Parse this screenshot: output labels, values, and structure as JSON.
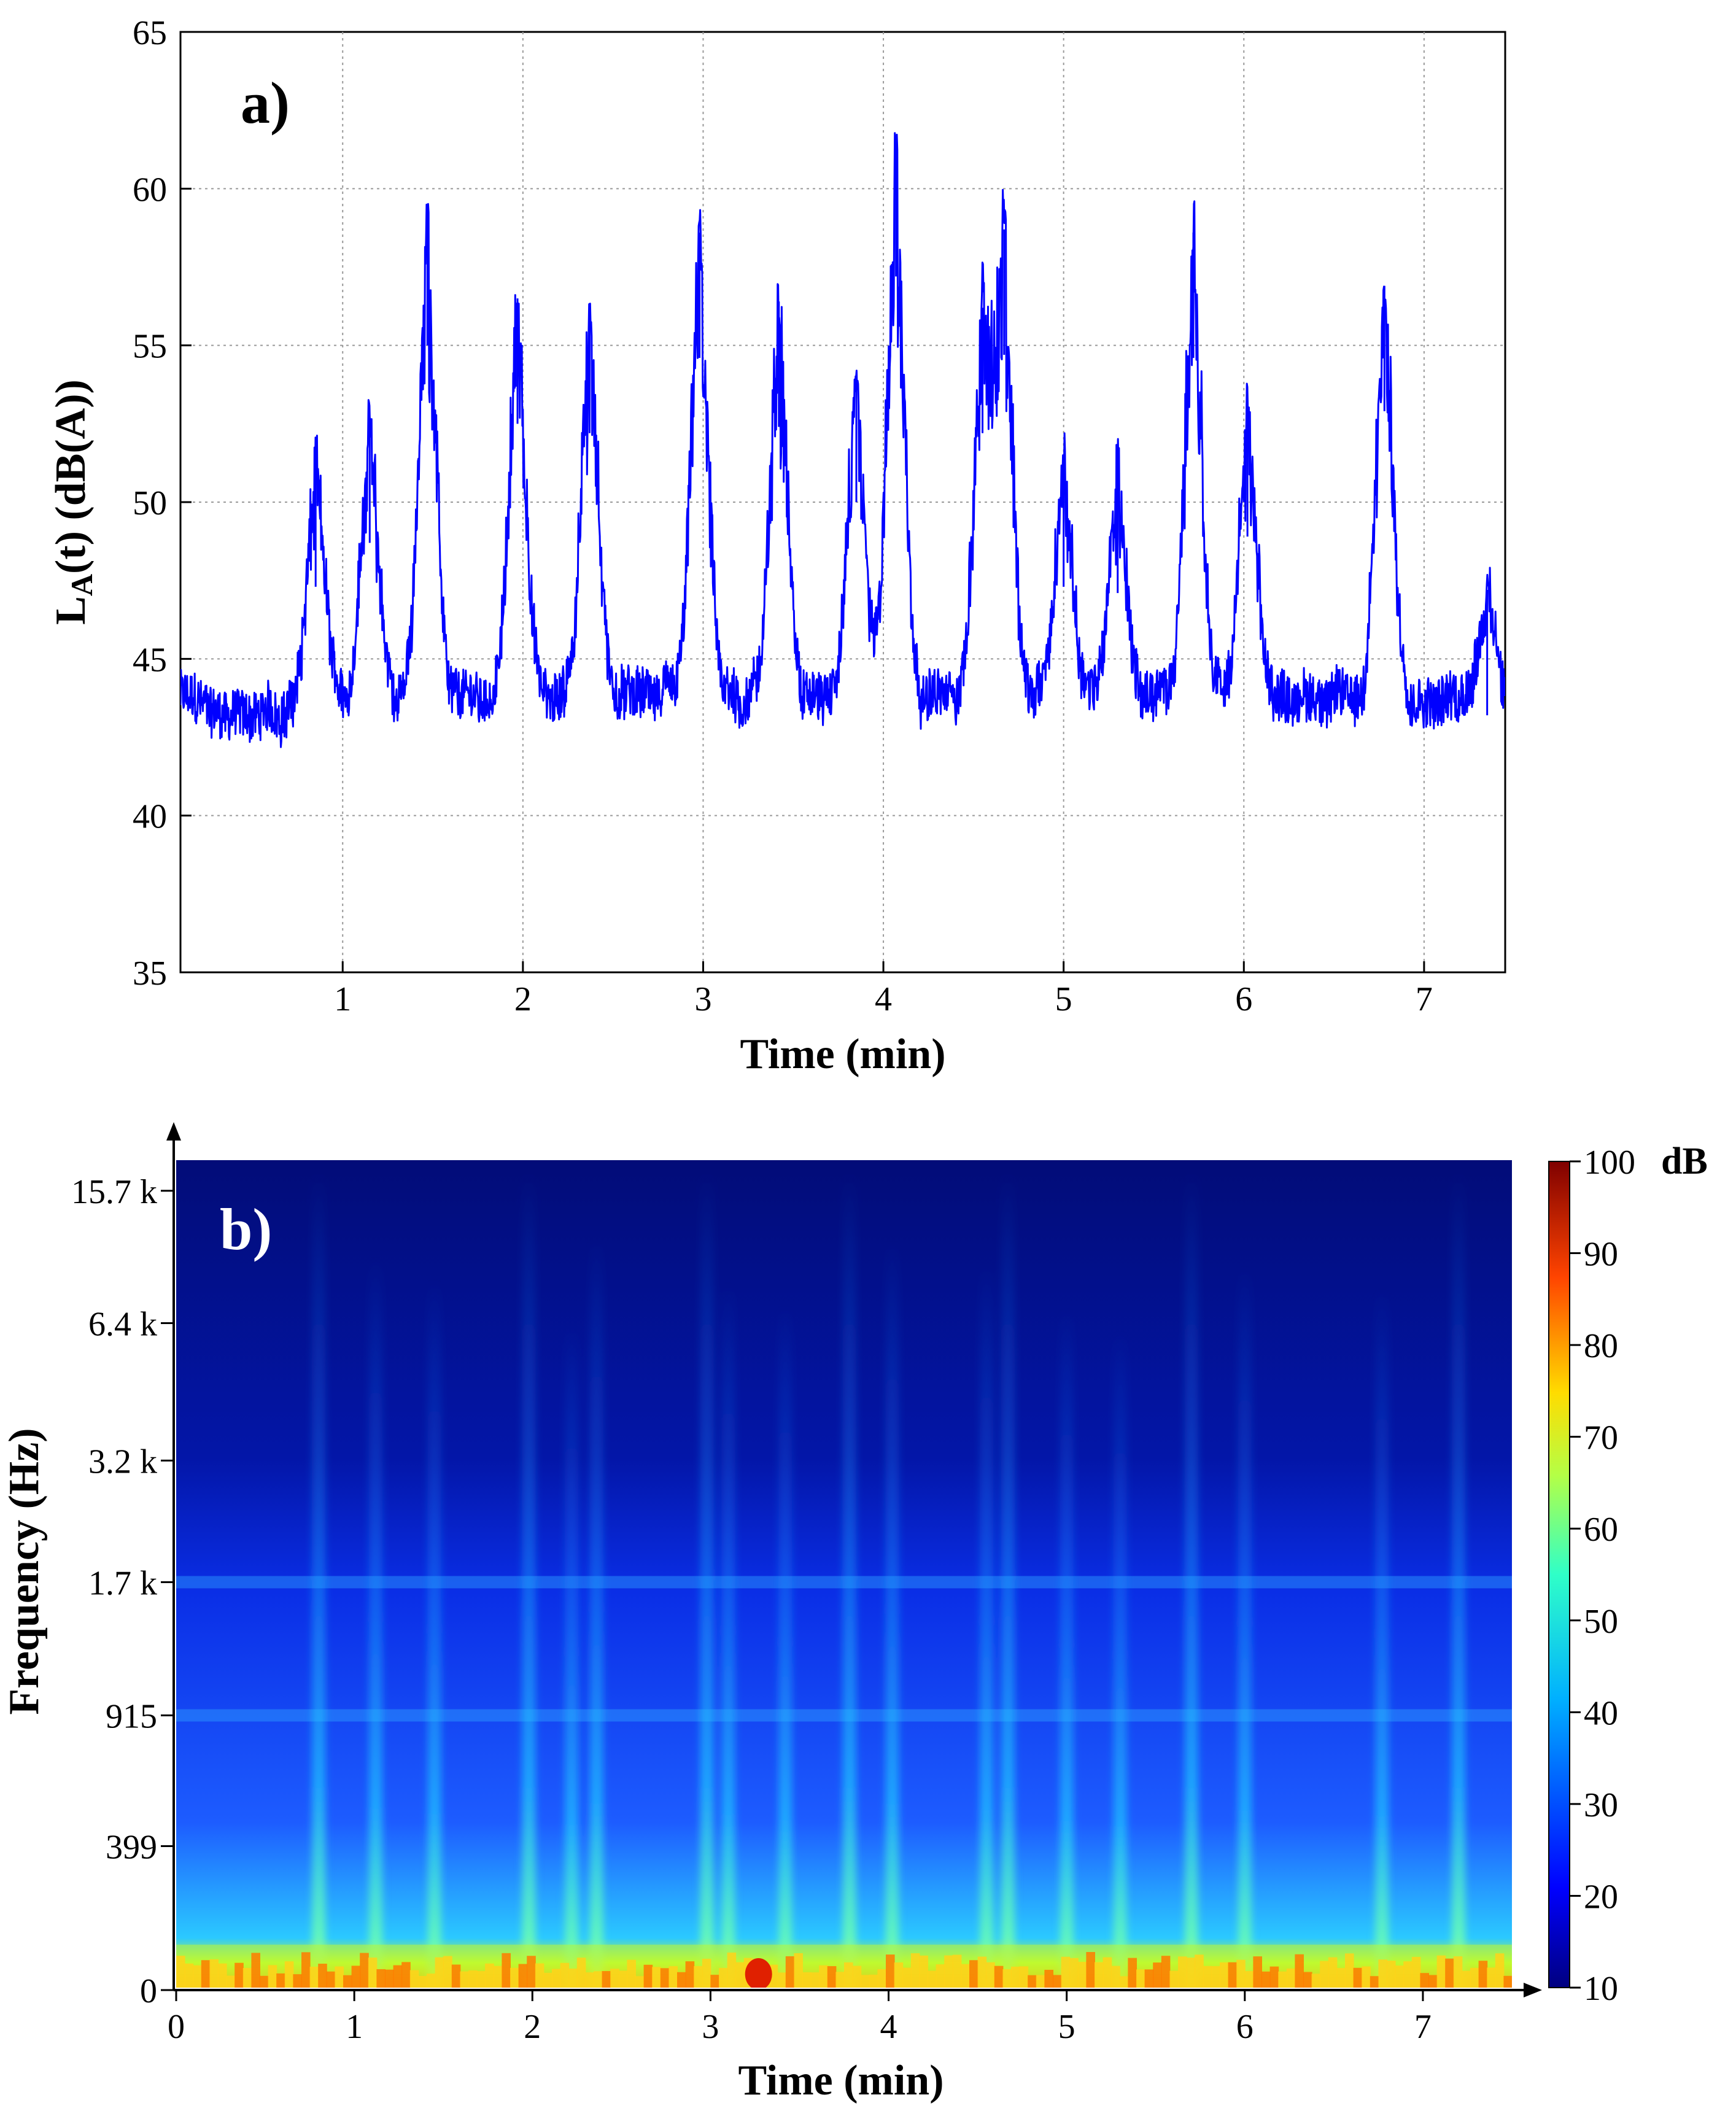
{
  "chart_data": [
    {
      "type": "line",
      "panel_label": "a)",
      "xlabel": "Time (min)",
      "ylabel_main": "L",
      "ylabel_sub": "A",
      "ylabel_rest": "(t) (dB(A))",
      "xlim": [
        0.1,
        7.45
      ],
      "ylim": [
        35,
        65
      ],
      "xticks": [
        "1",
        "2",
        "3",
        "4",
        "5",
        "6",
        "7"
      ],
      "yticks": [
        "35",
        "40",
        "45",
        "50",
        "55",
        "60",
        "65"
      ],
      "grid": true,
      "line_color": "#0000ff",
      "baseline_db": 43.8,
      "events": [
        {
          "t": 0.85,
          "peak": 51.3
        },
        {
          "t": 1.15,
          "peak": 52.7
        },
        {
          "t": 1.47,
          "peak": 59.0
        },
        {
          "t": 1.97,
          "peak": 56.5
        },
        {
          "t": 2.37,
          "peak": 56.2
        },
        {
          "t": 2.98,
          "peak": 58.6
        },
        {
          "t": 3.42,
          "peak": 56.4
        },
        {
          "t": 3.85,
          "peak": 54.0
        },
        {
          "t": 4.07,
          "peak": 61.2
        },
        {
          "t": 4.55,
          "peak": 56.2
        },
        {
          "t": 4.67,
          "peak": 58.7
        },
        {
          "t": 5.0,
          "peak": 51.3
        },
        {
          "t": 5.3,
          "peak": 51.1
        },
        {
          "t": 5.72,
          "peak": 58.6
        },
        {
          "t": 6.02,
          "peak": 52.9
        },
        {
          "t": 6.78,
          "peak": 56.9
        },
        {
          "t": 7.35,
          "peak": 47.2
        }
      ]
    },
    {
      "type": "heatmap",
      "panel_label": "b)",
      "xlabel": "Time (min)",
      "ylabel": "Frequency (Hz)",
      "xlim": [
        0,
        7.5
      ],
      "xticks": [
        "0",
        "1",
        "2",
        "3",
        "4",
        "5",
        "6",
        "7"
      ],
      "yticks": [
        "0",
        "399",
        "915",
        "1.7 k",
        "3.2 k",
        "6.4 k",
        "15.7 k"
      ],
      "colorbar": {
        "unit": "dB",
        "min": 10,
        "max": 100,
        "ticks": [
          "10",
          "20",
          "30",
          "40",
          "50",
          "60",
          "70",
          "80",
          "90",
          "100"
        ]
      },
      "harmonic_bands": [
        "915",
        "1.7 k"
      ],
      "event_times": [
        0.8,
        1.12,
        1.45,
        1.98,
        2.22,
        2.36,
        2.98,
        3.1,
        3.42,
        3.78,
        4.02,
        4.55,
        4.67,
        5.0,
        5.3,
        5.7,
        6.0,
        6.77,
        7.2
      ]
    }
  ]
}
